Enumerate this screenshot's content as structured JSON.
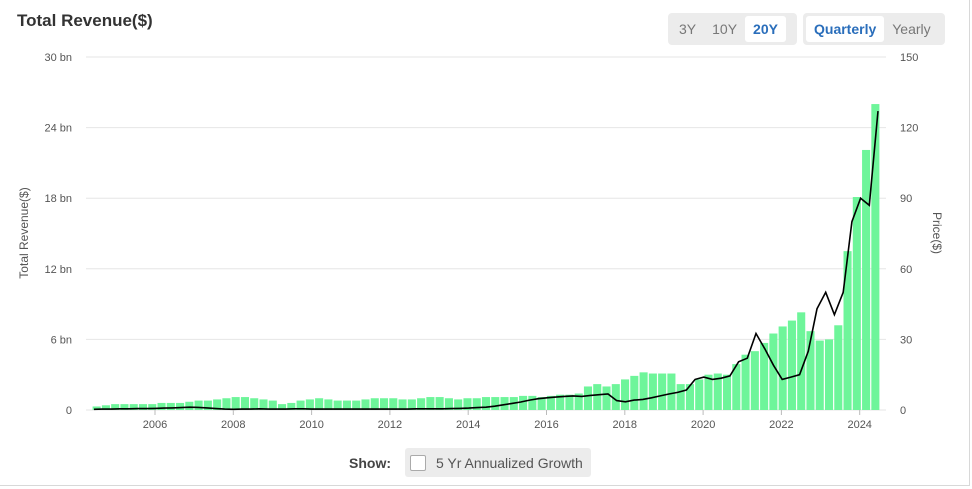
{
  "header": {
    "title": "Total Revenue($)"
  },
  "range_buttons": [
    {
      "label": "3Y",
      "active": false
    },
    {
      "label": "10Y",
      "active": false
    },
    {
      "label": "20Y",
      "active": true
    }
  ],
  "period_buttons": [
    {
      "label": "Quarterly",
      "active": true
    },
    {
      "label": "Yearly",
      "active": false
    }
  ],
  "footer": {
    "show_label": "Show:",
    "toggle_label": "5 Yr Annualized Growth",
    "toggle_checked": false
  },
  "colors": {
    "bar": "#6ef59a",
    "line": "#000000",
    "grid": "#e6e6e6",
    "accent": "#2a6ebb"
  },
  "chart_data": {
    "type": "bar",
    "title": "Total Revenue($)",
    "ylabel": "Total Revenue($)",
    "y2label": "Price($)",
    "ylim": [
      0,
      30
    ],
    "y2lim": [
      0,
      150
    ],
    "y_ticks": [
      "0",
      "6 bn",
      "12 bn",
      "18 bn",
      "24 bn",
      "30 bn"
    ],
    "y2_ticks": [
      "0",
      "30",
      "60",
      "90",
      "120",
      "150"
    ],
    "x_ticks": [
      "2006",
      "2008",
      "2010",
      "2012",
      "2014",
      "2016",
      "2018",
      "2020",
      "2022",
      "2024"
    ],
    "grid": true,
    "legend": "none",
    "series": [
      {
        "name": "Total Revenue($)",
        "type": "bar",
        "values": [
          0.3,
          0.4,
          0.5,
          0.5,
          0.5,
          0.5,
          0.5,
          0.6,
          0.6,
          0.6,
          0.7,
          0.8,
          0.8,
          0.9,
          1.0,
          1.1,
          1.1,
          1.0,
          0.9,
          0.8,
          0.5,
          0.6,
          0.8,
          0.9,
          1.0,
          0.9,
          0.8,
          0.8,
          0.8,
          0.9,
          1.0,
          1.0,
          1.0,
          0.9,
          0.9,
          1.0,
          1.1,
          1.1,
          1.0,
          0.9,
          1.0,
          1.0,
          1.1,
          1.1,
          1.1,
          1.1,
          1.2,
          1.2,
          1.1,
          1.2,
          1.3,
          1.3,
          1.4,
          2.0,
          2.2,
          2.0,
          2.2,
          2.6,
          2.9,
          3.2,
          3.1,
          3.1,
          3.1,
          2.2,
          2.2,
          2.6,
          3.0,
          3.1,
          3.0,
          3.9,
          4.7,
          5.0,
          5.7,
          6.5,
          7.1,
          7.6,
          8.3,
          6.7,
          5.9,
          6.0,
          7.2,
          13.5,
          18.1,
          22.1,
          26.0
        ]
      },
      {
        "name": "Price($)",
        "type": "line",
        "values": [
          0.3,
          0.4,
          0.4,
          0.5,
          0.5,
          0.6,
          0.6,
          0.7,
          0.8,
          0.9,
          1.0,
          1.2,
          1.1,
          0.9,
          0.6,
          0.4,
          0.3,
          0.4,
          0.4,
          0.5,
          0.4,
          0.4,
          0.4,
          0.5,
          0.5,
          0.4,
          0.4,
          0.4,
          0.4,
          0.4,
          0.4,
          0.4,
          0.4,
          0.4,
          0.4,
          0.4,
          0.4,
          0.5,
          0.5,
          0.5,
          0.5,
          0.6,
          0.7,
          0.8,
          1.0,
          1.2,
          1.6,
          2.2,
          2.8,
          3.4,
          4.2,
          4.8,
          5.2,
          5.5,
          5.8,
          6.0,
          5.8,
          6.2,
          6.5,
          6.8,
          4.0,
          3.5,
          4.2,
          4.5,
          5.2,
          6.0,
          6.8,
          7.5,
          8.5,
          13.0,
          14.0,
          13.0,
          13.5,
          14.5,
          20.5,
          22.0,
          32.5,
          26.0,
          19.0,
          13.0,
          14.0,
          15.0,
          25.0,
          43.0,
          50.0,
          40.5,
          50.0,
          80.0,
          90.0,
          87.0,
          127.0
        ]
      }
    ]
  }
}
